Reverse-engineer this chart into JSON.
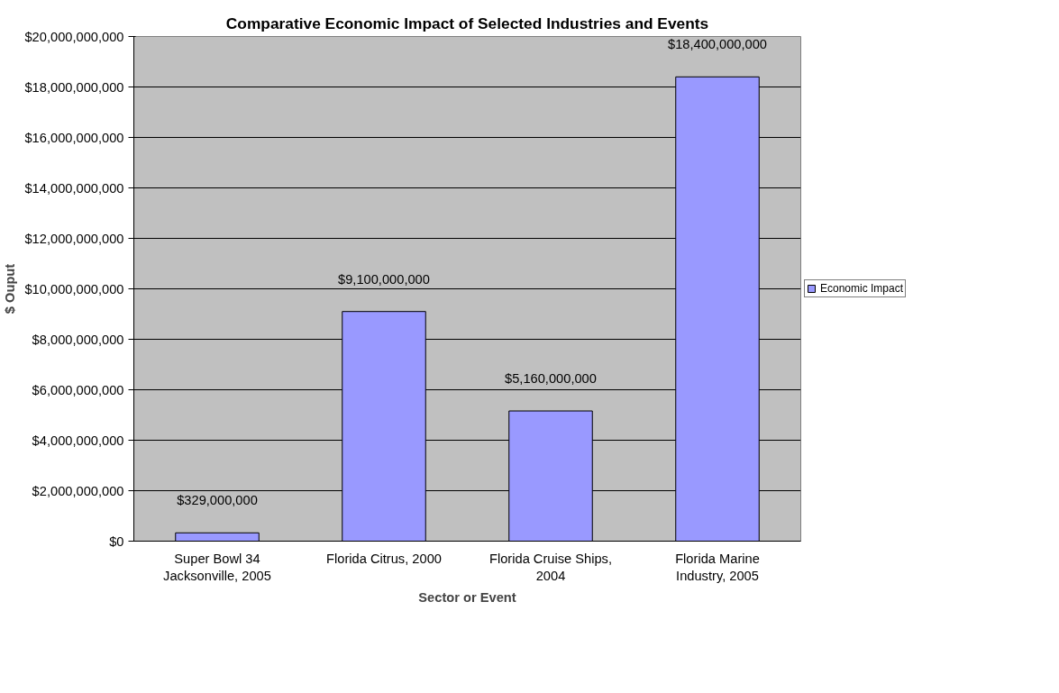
{
  "chart_data": {
    "type": "bar",
    "title": "Comparative Economic Impact of Selected Industries and Events",
    "xlabel": "Sector or Event",
    "ylabel": "$ Ouput",
    "categories": [
      "Super Bowl 34\nJacksonville, 2005",
      "Florida Citrus, 2000",
      "Florida Cruise Ships,\n2004",
      "Florida Marine\nIndustry, 2005"
    ],
    "series": [
      {
        "name": "Economic Impact",
        "color": "#9999ff",
        "values": [
          329000000,
          9100000000,
          5160000000,
          18400000000
        ],
        "value_labels": [
          "$329,000,000",
          "$9,100,000,000",
          "$5,160,000,000",
          "$18,400,000,000"
        ]
      }
    ],
    "ylim": [
      0,
      20000000000
    ],
    "yticks": [
      {
        "value": 0,
        "label": "$0"
      },
      {
        "value": 2000000000,
        "label": "$2,000,000,000"
      },
      {
        "value": 4000000000,
        "label": "$4,000,000,000"
      },
      {
        "value": 6000000000,
        "label": "$6,000,000,000"
      },
      {
        "value": 8000000000,
        "label": "$8,000,000,000"
      },
      {
        "value": 10000000000,
        "label": "$10,000,000,000"
      },
      {
        "value": 12000000000,
        "label": "$12,000,000,000"
      },
      {
        "value": 14000000000,
        "label": "$14,000,000,000"
      },
      {
        "value": 16000000000,
        "label": "$16,000,000,000"
      },
      {
        "value": 18000000000,
        "label": "$18,000,000,000"
      },
      {
        "value": 20000000000,
        "label": "$20,000,000,000"
      }
    ],
    "grid": "y",
    "legend": "right"
  }
}
